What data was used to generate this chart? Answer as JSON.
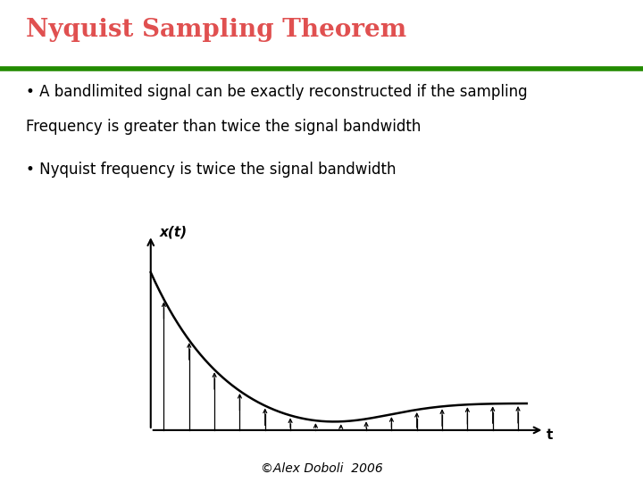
{
  "title": "Nyquist Sampling Theorem",
  "title_color": "#E05050",
  "title_fontsize": 20,
  "green_line_color": "#228B00",
  "bullet1_line1": "• A bandlimited signal can be exactly reconstructed if the sampling",
  "bullet1_line2": "Frequency is greater than twice the signal bandwidth",
  "bullet2": "• Nyquist frequency is twice the signal bandwidth",
  "xlabel": "t",
  "ylabel": "x(t)",
  "copyright": "©Alex Doboli  2006",
  "num_samples": 15,
  "text_fontsize": 12,
  "copyright_fontsize": 10
}
